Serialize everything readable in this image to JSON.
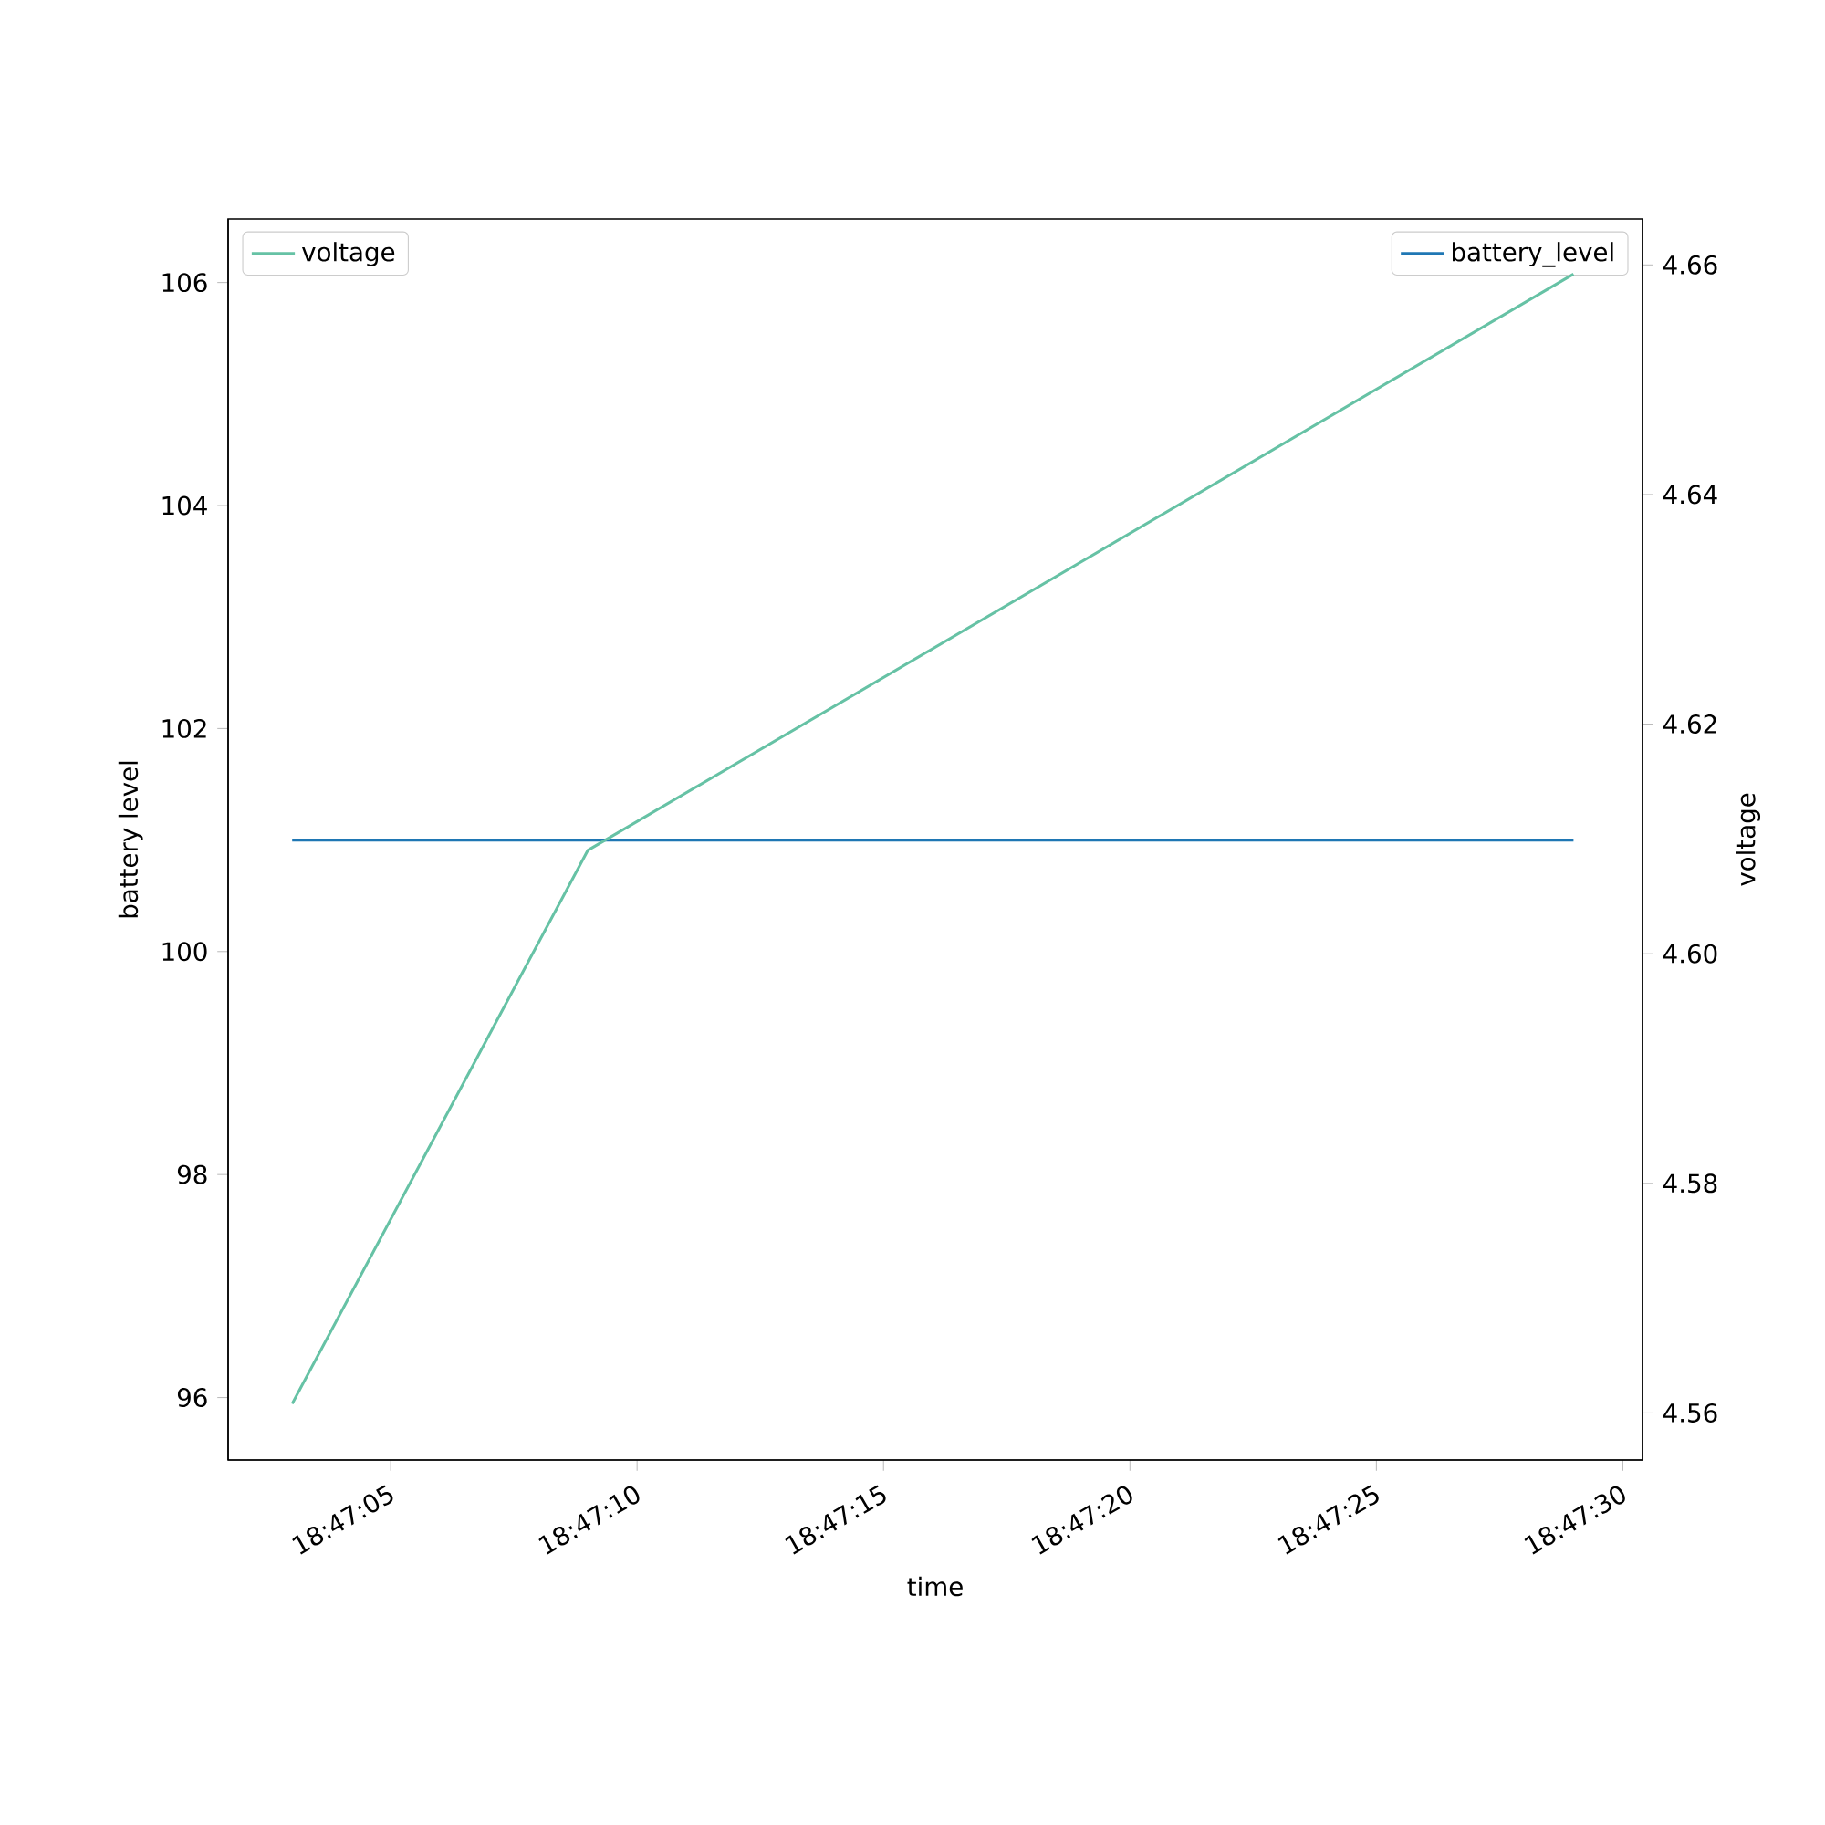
{
  "chart_data": {
    "type": "line",
    "xlabel": "time",
    "ylabel": "battery level",
    "y2label": "voltage",
    "x": [
      18.784167,
      18.785833,
      18.791389
    ],
    "series": [
      {
        "name": "battery_level",
        "color": "#1f77b4",
        "values": [
          101,
          101,
          101
        ]
      },
      {
        "name": "voltage",
        "color": "#66c2a5",
        "axis": "y2",
        "values": [
          4.5608,
          4.609,
          4.6592
        ]
      }
    ],
    "xlim": [
      18.783806,
      18.791778
    ],
    "xticks": [
      {
        "value": 18.784722,
        "label": "18:47:05"
      },
      {
        "value": 18.786111,
        "label": "18:47:10"
      },
      {
        "value": 18.7875,
        "label": "18:47:15"
      },
      {
        "value": 18.788889,
        "label": "18:47:20"
      },
      {
        "value": 18.790278,
        "label": "18:47:25"
      },
      {
        "value": 18.791667,
        "label": "18:47:30"
      }
    ],
    "ylim": [
      95.44,
      106.57
    ],
    "yticks": [
      96,
      98,
      100,
      102,
      104,
      106
    ],
    "y2lim": [
      4.5559,
      4.664
    ],
    "y2ticks": [
      4.56,
      4.58,
      {
        "value": 4.6,
        "label": "4.60"
      },
      4.62,
      4.64,
      4.66
    ],
    "legend": "top right"
  }
}
